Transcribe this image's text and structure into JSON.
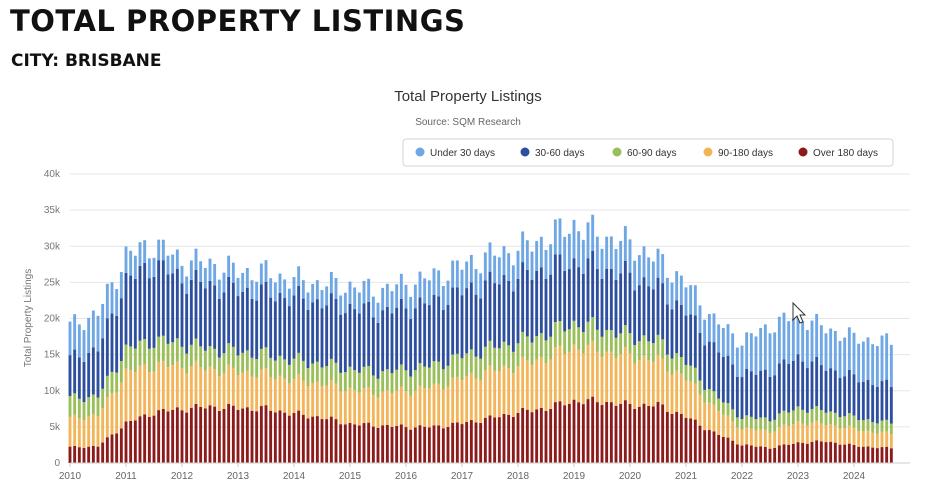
{
  "header": {
    "title": "TOTAL PROPERTY LISTINGS",
    "subtitle": "CITY: BRISBANE"
  },
  "chart_data": {
    "type": "bar",
    "stacked": true,
    "title": "Total Property Listings",
    "subtitle": "Source: SQM Research",
    "ylabel": "Total Property Listings",
    "xlabel": "",
    "ylim": [
      0,
      40000
    ],
    "yticks": [
      {
        "value": 0,
        "label": "0"
      },
      {
        "value": 5000,
        "label": "5k"
      },
      {
        "value": 10000,
        "label": "10k"
      },
      {
        "value": 15000,
        "label": "15k"
      },
      {
        "value": 20000,
        "label": "20k"
      },
      {
        "value": 25000,
        "label": "25k"
      },
      {
        "value": 30000,
        "label": "30k"
      },
      {
        "value": 35000,
        "label": "35k"
      },
      {
        "value": 40000,
        "label": "40k"
      }
    ],
    "xlim": [
      2010.0,
      2025.0
    ],
    "xticks": [
      "2010",
      "2011",
      "2012",
      "2013",
      "2014",
      "2015",
      "2016",
      "2017",
      "2018",
      "2019",
      "2020",
      "2021",
      "2022",
      "2023",
      "2024"
    ],
    "grid": "horizontal",
    "legend_position": "top-right",
    "x": [
      2010.0,
      2010.5,
      2011.0,
      2011.5,
      2012.0,
      2012.5,
      2013.0,
      2013.5,
      2014.0,
      2014.5,
      2015.0,
      2015.5,
      2016.0,
      2016.5,
      2017.0,
      2017.5,
      2018.0,
      2018.5,
      2019.0,
      2019.5,
      2020.0,
      2020.5,
      2021.0,
      2021.5,
      2022.0,
      2022.5,
      2023.0,
      2023.5,
      2024.0,
      2024.5
    ],
    "series": [
      {
        "name": "Over 180 days",
        "color": "#8b1a1a",
        "values": [
          2200,
          2300,
          5500,
          7000,
          7500,
          7800,
          7600,
          7500,
          6800,
          6300,
          5400,
          5200,
          5000,
          5000,
          5500,
          6200,
          7000,
          7600,
          8600,
          8500,
          8000,
          8000,
          6400,
          4200,
          2500,
          2100,
          2800,
          3000,
          2400,
          2100
        ]
      },
      {
        "name": "90-180 days",
        "color": "#f2b55a",
        "values": [
          4000,
          4300,
          7000,
          6500,
          6000,
          5200,
          5000,
          4800,
          4700,
          4700,
          4800,
          4500,
          5000,
          5500,
          6200,
          6500,
          6500,
          7000,
          7500,
          7000,
          6800,
          6200,
          5300,
          3500,
          2300,
          2300,
          2800,
          2400,
          2300,
          2000
        ]
      },
      {
        "name": "60-90 days",
        "color": "#99be5a",
        "values": [
          2800,
          2600,
          3200,
          3500,
          3000,
          2800,
          2800,
          2700,
          2700,
          2700,
          2800,
          2800,
          2900,
          3000,
          3100,
          3200,
          3200,
          3300,
          3200,
          3000,
          2800,
          2600,
          2200,
          1800,
          1500,
          1700,
          2000,
          1800,
          1600,
          1500
        ]
      },
      {
        "name": "30-60 days",
        "color": "#2e4f9e",
        "values": [
          5500,
          6500,
          9500,
          10500,
          9000,
          8800,
          8500,
          8500,
          8600,
          8500,
          8500,
          8300,
          8600,
          8800,
          8900,
          9000,
          9000,
          9000,
          8500,
          8500,
          8200,
          7500,
          7000,
          6500,
          6000,
          6500,
          7000,
          6000,
          5500,
          5200
        ]
      },
      {
        "name": "Under 30 days",
        "color": "#6ea7e4",
        "values": [
          4500,
          5000,
          3500,
          2800,
          2500,
          3000,
          2600,
          2800,
          2500,
          2600,
          3000,
          3000,
          3300,
          3500,
          3600,
          3800,
          3900,
          4200,
          5200,
          4400,
          4500,
          3800,
          4000,
          3800,
          4500,
          6400,
          5800,
          5400,
          5500,
          6000
        ]
      }
    ]
  }
}
